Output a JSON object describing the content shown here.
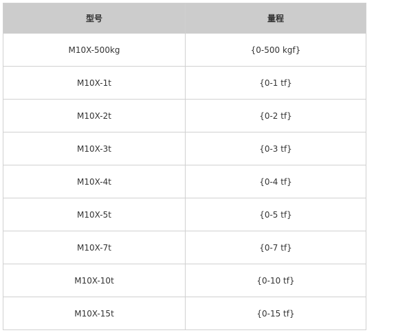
{
  "table": {
    "headers": [
      "型号",
      "量程"
    ],
    "rows": [
      [
        "M10X-500kg",
        "{0-500 kgf}"
      ],
      [
        "M10X-1t",
        "{0-1 tf}"
      ],
      [
        "M10X-2t",
        "{0-2 tf}"
      ],
      [
        "M10X-3t",
        "{0-3 tf}"
      ],
      [
        "M10X-4t",
        "{0-4 tf}"
      ],
      [
        "M10X-5t",
        "{0-5 tf}"
      ],
      [
        "M10X-7t",
        "{0-7 tf}"
      ],
      [
        "M10X-10t",
        "{0-10 tf}"
      ],
      [
        "M10X-15t",
        "{0-15 tf}"
      ]
    ]
  }
}
